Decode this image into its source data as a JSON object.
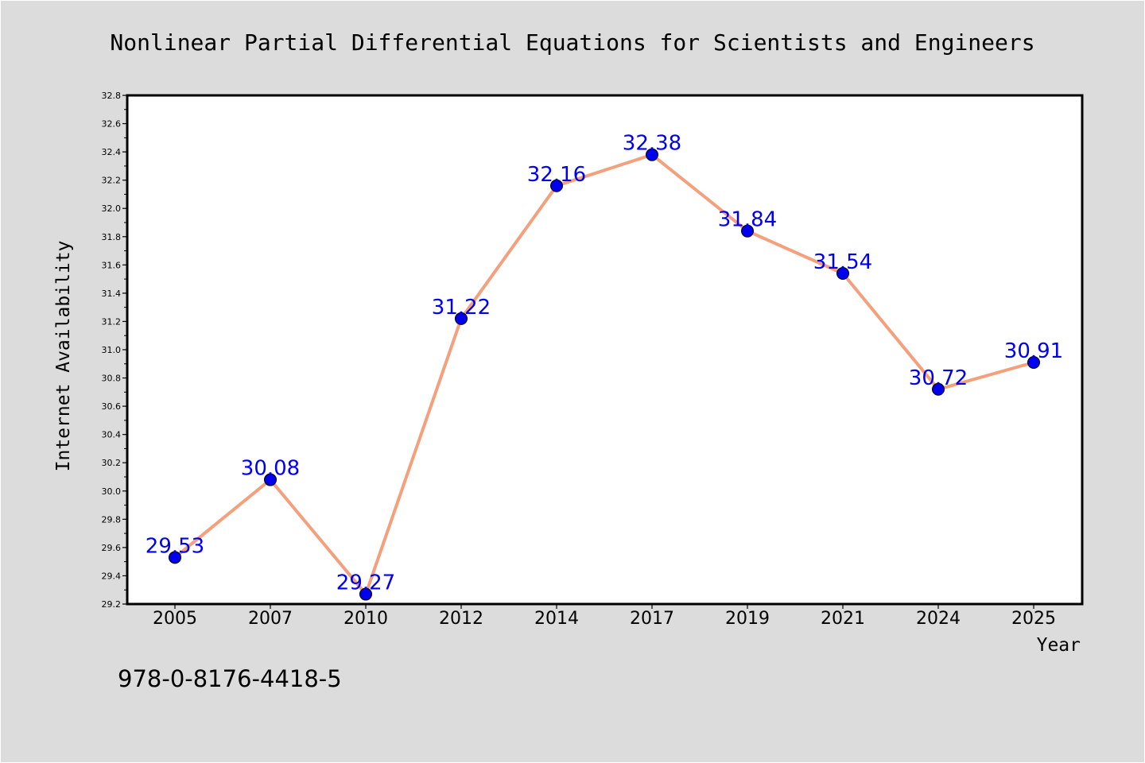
{
  "chart_data": {
    "type": "line",
    "title": "Nonlinear Partial Differential Equations for Scientists and Engineers",
    "xlabel": "Year",
    "ylabel": "Internet Availability",
    "categories": [
      "2005",
      "2007",
      "2010",
      "2012",
      "2014",
      "2017",
      "2019",
      "2021",
      "2024",
      "2025"
    ],
    "series": [
      {
        "values": [
          29.53,
          30.08,
          29.27,
          31.22,
          32.16,
          32.38,
          31.84,
          31.54,
          30.72,
          30.91
        ],
        "color": "#f4a07c",
        "marker_color": "#0000ee"
      }
    ],
    "data_labels": [
      "29.53",
      "30.08",
      "29.27",
      "31.22",
      "32.16",
      "32.38",
      "31.84",
      "31.54",
      "30.72",
      "30.91"
    ],
    "ylim": [
      29.2,
      32.8
    ],
    "y_major_ticks": [
      "29.2",
      "29.4",
      "29.6",
      "29.8",
      "30.0",
      "30.2",
      "30.4",
      "30.6",
      "30.8",
      "31.0",
      "31.2",
      "31.4",
      "31.6",
      "31.8",
      "32.0",
      "32.2",
      "32.4",
      "32.6",
      "32.8"
    ],
    "grid": false,
    "legend": "none",
    "annotation": "978-0-8176-4418-5",
    "label_color": "#0000ee",
    "background": "#dcdcdc",
    "plot_background": "#ffffff"
  }
}
